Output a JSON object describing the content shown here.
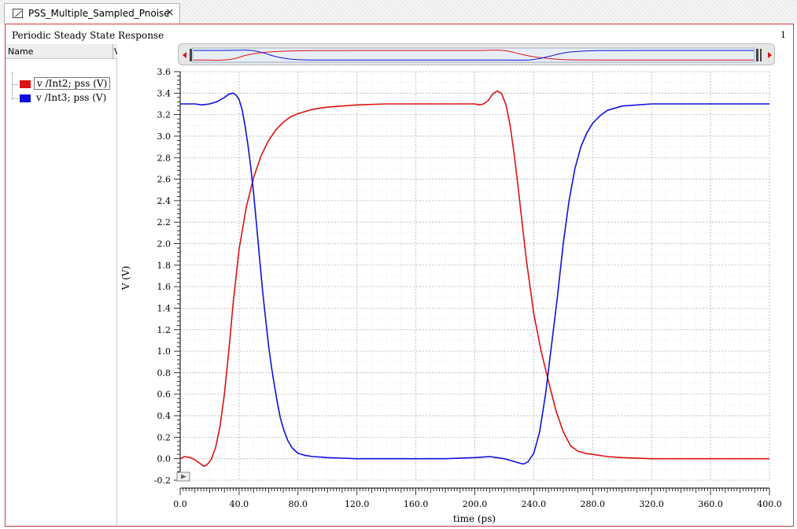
{
  "tab": {
    "title": "PSS_Multiple_Sampled_Pnoise",
    "close": "×"
  },
  "frame": {
    "title": "Periodic Steady State Response",
    "number": "1"
  },
  "panel": {
    "name_header": "Name",
    "value_header": "V"
  },
  "legend": [
    {
      "label": "v /Int2; pss (V)",
      "color": "#dd1111"
    },
    {
      "label": "v /Int3; pss (V)",
      "color": "#1010dd"
    }
  ],
  "colors": {
    "frame_border": "#d43c3c",
    "grid": "#c8c8c8"
  },
  "chart_data": {
    "type": "line",
    "xlabel": "time (ps)",
    "ylabel": "V (V)",
    "xlim": [
      0,
      400
    ],
    "ylim": [
      -0.2,
      3.6
    ],
    "x_ticks": [
      0,
      40,
      80,
      120,
      160,
      200,
      240,
      280,
      320,
      360,
      400
    ],
    "x_tick_labels": [
      "0.0",
      "40.0",
      "80.0",
      "120.0",
      "160.0",
      "200.0",
      "240.0",
      "280.0",
      "320.0",
      "360.0",
      "400.0"
    ],
    "y_ticks": [
      -0.2,
      0.0,
      0.2,
      0.4,
      0.6,
      0.8,
      1.0,
      1.2,
      1.4,
      1.6,
      1.8,
      2.0,
      2.2,
      2.4,
      2.6,
      2.8,
      3.0,
      3.2,
      3.4,
      3.6
    ],
    "y_tick_labels": [
      "-0.2",
      "0.0",
      "0.2",
      "0.4",
      "0.6",
      "0.8",
      "1.0",
      "1.2",
      "1.4",
      "1.6",
      "1.8",
      "2.0",
      "2.2",
      "2.4",
      "2.6",
      "2.8",
      "3.0",
      "3.2",
      "3.4",
      "3.6"
    ],
    "grid": true,
    "series": [
      {
        "name": "v /Int2; pss (V)",
        "color": "#dd1111",
        "x": [
          0,
          3,
          7,
          10,
          13,
          16,
          18,
          21,
          24,
          27,
          30,
          33,
          36,
          40,
          45,
          50,
          55,
          60,
          65,
          70,
          75,
          80,
          90,
          100,
          110,
          120,
          140,
          160,
          180,
          200,
          203,
          206,
          209,
          212,
          215,
          218,
          221,
          224,
          227,
          230,
          235,
          240,
          245,
          250,
          255,
          260,
          265,
          270,
          275,
          280,
          290,
          300,
          320,
          340,
          360,
          380,
          400
        ],
        "y": [
          0.0,
          0.02,
          0.01,
          -0.01,
          -0.04,
          -0.07,
          -0.06,
          -0.01,
          0.1,
          0.3,
          0.6,
          1.0,
          1.45,
          1.95,
          2.35,
          2.62,
          2.82,
          2.96,
          3.06,
          3.13,
          3.18,
          3.21,
          3.25,
          3.27,
          3.28,
          3.29,
          3.3,
          3.3,
          3.3,
          3.3,
          3.29,
          3.3,
          3.33,
          3.39,
          3.42,
          3.4,
          3.3,
          3.1,
          2.8,
          2.45,
          1.85,
          1.35,
          1.0,
          0.72,
          0.45,
          0.25,
          0.12,
          0.07,
          0.05,
          0.04,
          0.02,
          0.01,
          0.0,
          0.0,
          0.0,
          0.0,
          0.0
        ]
      },
      {
        "name": "v /Int3; pss (V)",
        "color": "#1010dd",
        "x": [
          0,
          10,
          15,
          20,
          25,
          30,
          33,
          36,
          38,
          40,
          42,
          44,
          46,
          48,
          50,
          52,
          54,
          56,
          58,
          60,
          62,
          64,
          66,
          68,
          70,
          73,
          76,
          80,
          85,
          90,
          95,
          100,
          110,
          120,
          140,
          160,
          180,
          200,
          210,
          215,
          220,
          225,
          230,
          233,
          236,
          240,
          244,
          248,
          252,
          256,
          260,
          264,
          268,
          272,
          276,
          280,
          285,
          290,
          300,
          320,
          340,
          360,
          380,
          400
        ],
        "y": [
          3.3,
          3.3,
          3.29,
          3.3,
          3.32,
          3.36,
          3.39,
          3.4,
          3.38,
          3.34,
          3.25,
          3.1,
          2.92,
          2.7,
          2.45,
          2.15,
          1.85,
          1.55,
          1.3,
          1.05,
          0.85,
          0.68,
          0.52,
          0.38,
          0.28,
          0.17,
          0.1,
          0.05,
          0.03,
          0.02,
          0.015,
          0.01,
          0.005,
          0.0,
          0.0,
          0.0,
          0.0,
          0.01,
          0.02,
          0.01,
          0.0,
          -0.02,
          -0.04,
          -0.05,
          -0.03,
          0.05,
          0.25,
          0.6,
          1.05,
          1.5,
          2.0,
          2.4,
          2.7,
          2.9,
          3.03,
          3.12,
          3.19,
          3.24,
          3.28,
          3.3,
          3.3,
          3.3,
          3.3,
          3.3
        ]
      }
    ]
  }
}
